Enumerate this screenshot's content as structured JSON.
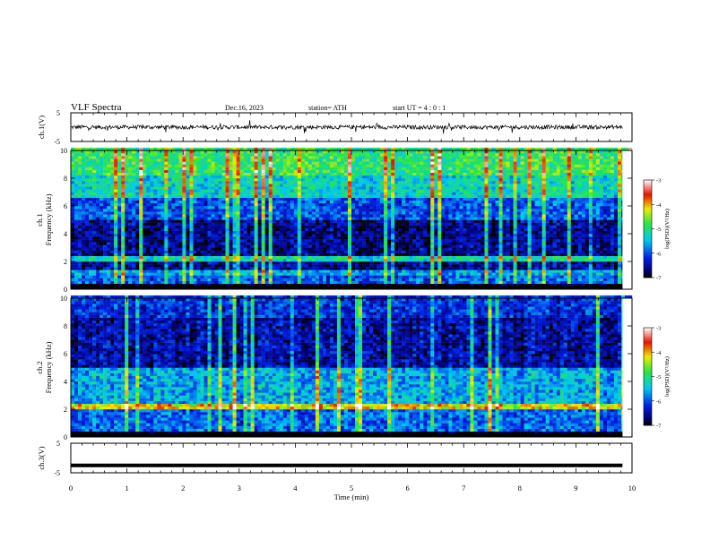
{
  "header": {
    "title": "VLF  Spectra",
    "date": "Dec.16,  2023",
    "station": "station= ATH",
    "start_ut": "start  UT  =    4 : 0  : 1"
  },
  "chart_data": [
    {
      "type": "line",
      "panel": "ch1-waveform",
      "ylabel": "ch.1(V)",
      "ylim": [
        -5,
        5
      ],
      "yticks": [
        "5",
        "-5"
      ],
      "x_range_min": [
        0,
        9.83
      ],
      "approx_level": 0,
      "approx_noise_amplitude": 0.7
    },
    {
      "type": "heatmap",
      "panel": "ch1-spectrogram",
      "ylabel": "ch.1\nFrequency  (kHz)",
      "ylim": [
        0,
        10
      ],
      "yticks": [
        "0",
        "2",
        "4",
        "6",
        "8",
        "10"
      ],
      "colorbar": {
        "label": "log(PSD)(V²/Hz)",
        "range": [
          -7,
          -3
        ],
        "ticks": [
          "-3",
          "-4",
          "-5",
          "-6",
          "-7"
        ]
      },
      "bands": [
        {
          "f": [
            0.0,
            0.25
          ],
          "level": -7
        },
        {
          "f": [
            0.25,
            1.0
          ],
          "level": -6.0
        },
        {
          "f": [
            1.0,
            1.4
          ],
          "level": -5.6
        },
        {
          "f": [
            1.4,
            1.9
          ],
          "level": -6.6
        },
        {
          "f": [
            1.9,
            2.2
          ],
          "level": -5.2
        },
        {
          "f": [
            2.2,
            5.0
          ],
          "level": -6.6
        },
        {
          "f": [
            5.0,
            6.6
          ],
          "level": -6.0
        },
        {
          "f": [
            6.6,
            8.2
          ],
          "level": -5.3
        },
        {
          "f": [
            8.2,
            10.0
          ],
          "level": -4.9
        }
      ]
    },
    {
      "type": "heatmap",
      "panel": "ch2-spectrogram",
      "ylabel": "ch.2\nFrequency  (kHz)",
      "ylim": [
        0,
        10
      ],
      "yticks": [
        "0",
        "2",
        "4",
        "6",
        "8",
        "10"
      ],
      "colorbar": {
        "label": "log(PSD)(V²/Hz)",
        "range": [
          -7,
          -3
        ],
        "ticks": [
          "-3",
          "-4",
          "-5",
          "-6",
          "-7"
        ]
      },
      "bands": [
        {
          "f": [
            0.0,
            0.25
          ],
          "level": -7
        },
        {
          "f": [
            0.25,
            1.8
          ],
          "level": -5.9
        },
        {
          "f": [
            1.8,
            2.3
          ],
          "level": -4.2
        },
        {
          "f": [
            2.3,
            5.0
          ],
          "level": -5.6
        },
        {
          "f": [
            5.0,
            8.5
          ],
          "level": -6.5
        },
        {
          "f": [
            8.5,
            10.0
          ],
          "level": -6.2
        }
      ]
    },
    {
      "type": "line",
      "panel": "ch3-waveform",
      "ylabel": "ch.3(V)",
      "ylim": [
        -5,
        5
      ],
      "yticks": [
        "5",
        "-5"
      ],
      "x_range_min": [
        0,
        9.83
      ],
      "approx_level": -2.5
    }
  ],
  "x_axis": {
    "label": "Time  (min)",
    "ticks": [
      "0",
      "1",
      "2",
      "3",
      "4",
      "5",
      "6",
      "7",
      "8",
      "9",
      "10"
    ],
    "range": [
      0,
      10
    ]
  }
}
